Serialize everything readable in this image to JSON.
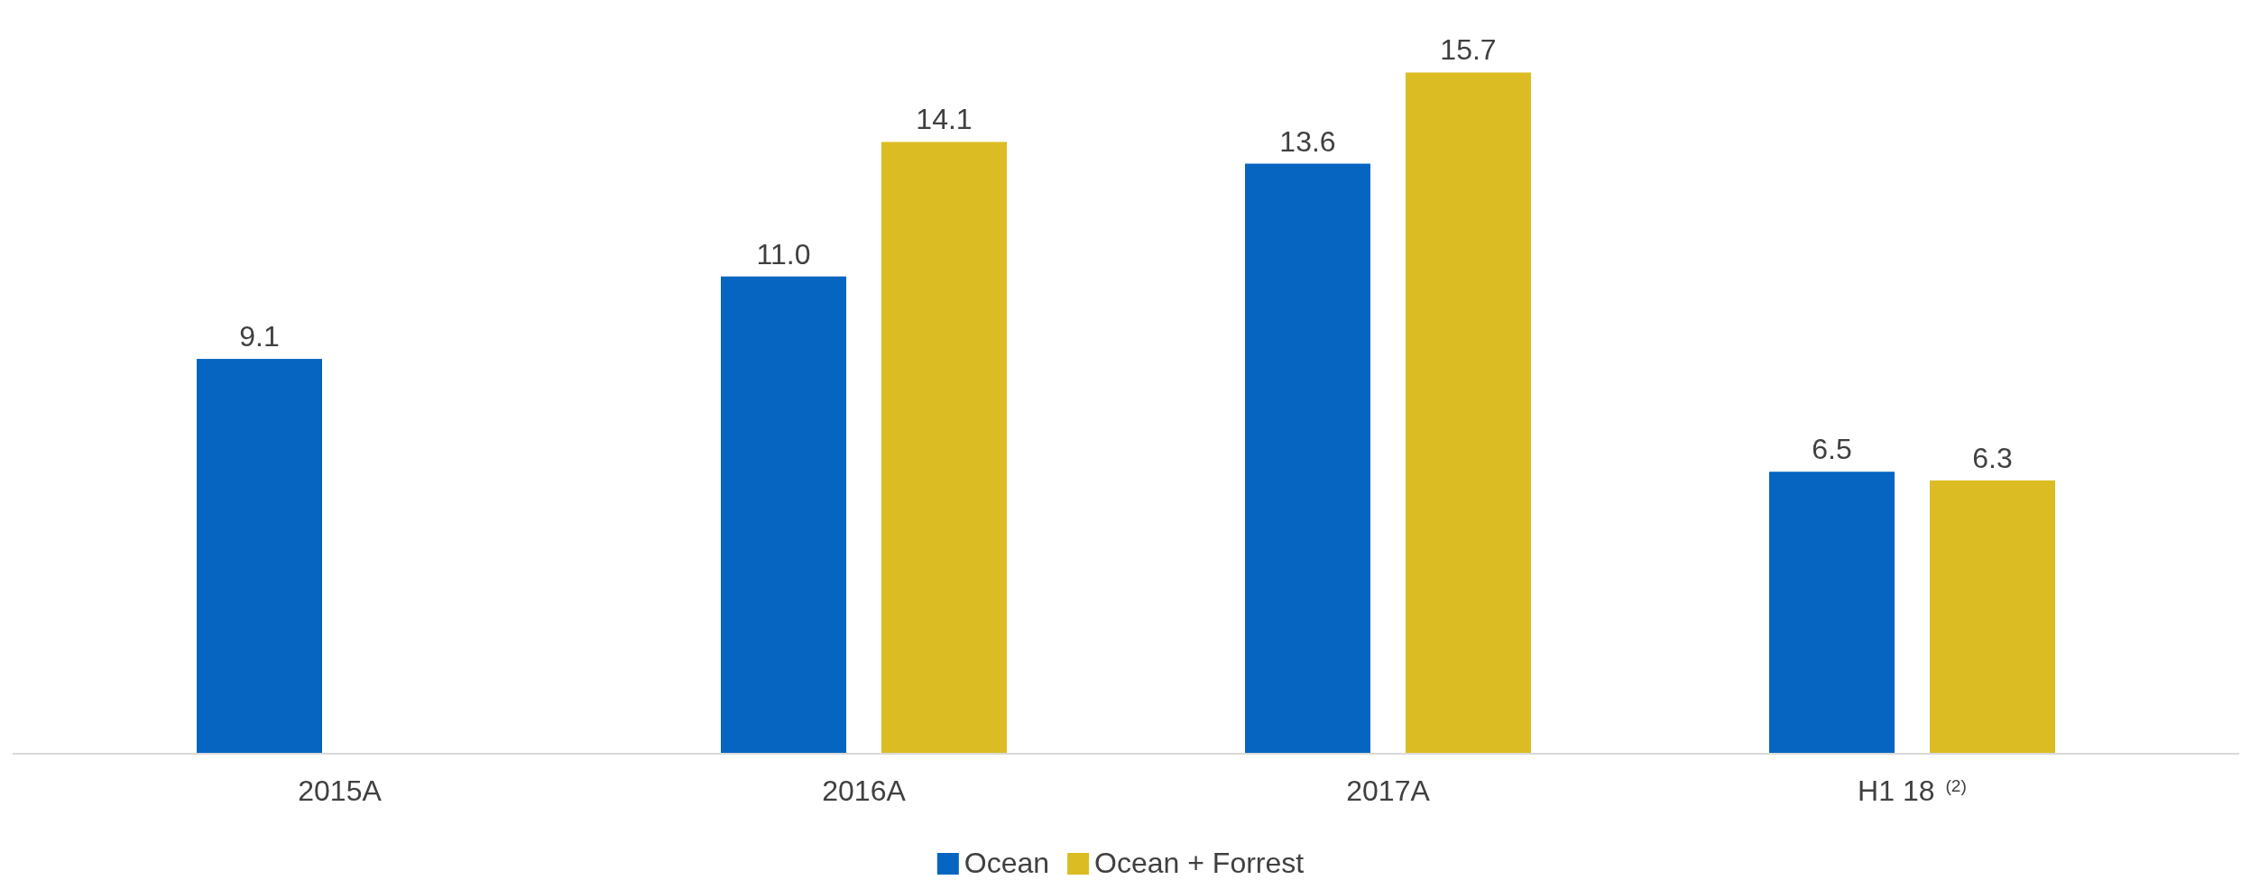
{
  "chart_data": {
    "type": "bar",
    "categories": [
      "2015A",
      "2016A",
      "2017A",
      "H1 18$^{(2)}$"
    ],
    "series": [
      {
        "name": "Ocean",
        "color": "#0565c0",
        "values": [
          9.1,
          11.0,
          13.6,
          6.5
        ],
        "value_labels": [
          "9.1",
          "11.0",
          "13.6",
          "6.5"
        ]
      },
      {
        "name": "Ocean + Forrest",
        "color": "#dbbd23",
        "values": [
          null,
          14.1,
          15.7,
          6.3
        ],
        "value_labels": [
          null,
          "14.1",
          "15.7",
          "6.3"
        ]
      }
    ],
    "legend": "bottom"
  }
}
